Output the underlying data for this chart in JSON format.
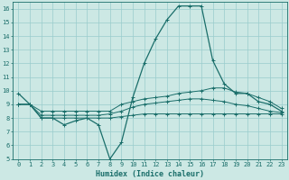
{
  "xlabel": "Humidex (Indice chaleur)",
  "background_color": "#cce8e4",
  "grid_color": "#99cccc",
  "line_color": "#1a6e6a",
  "xlim": [
    -0.5,
    23.5
  ],
  "ylim": [
    5,
    16.5
  ],
  "xticks": [
    0,
    1,
    2,
    3,
    4,
    5,
    6,
    7,
    8,
    9,
    10,
    11,
    12,
    13,
    14,
    15,
    16,
    17,
    18,
    19,
    20,
    21,
    22,
    23
  ],
  "yticks": [
    5,
    6,
    7,
    8,
    9,
    10,
    11,
    12,
    13,
    14,
    15,
    16
  ],
  "lines": [
    {
      "x": [
        0,
        1,
        2,
        3,
        4,
        5,
        6,
        7,
        8,
        9,
        10,
        11,
        12,
        13,
        14,
        15,
        16,
        17,
        18,
        19,
        20,
        21,
        22,
        23
      ],
      "y": [
        9.8,
        9.0,
        8.0,
        8.0,
        7.5,
        7.8,
        8.0,
        7.5,
        5.0,
        6.2,
        9.5,
        12.0,
        13.8,
        15.2,
        16.2,
        16.2,
        16.2,
        12.2,
        10.5,
        9.8,
        9.8,
        9.2,
        9.0,
        8.5
      ]
    },
    {
      "x": [
        0,
        1,
        2,
        3,
        4,
        5,
        6,
        7,
        8,
        9,
        10,
        11,
        12,
        13,
        14,
        15,
        16,
        17,
        18,
        19,
        20,
        21,
        22,
        23
      ],
      "y": [
        9.0,
        9.0,
        8.5,
        8.5,
        8.5,
        8.5,
        8.5,
        8.5,
        8.5,
        9.0,
        9.2,
        9.4,
        9.5,
        9.6,
        9.8,
        9.9,
        10.0,
        10.2,
        10.2,
        9.9,
        9.8,
        9.5,
        9.2,
        8.7
      ]
    },
    {
      "x": [
        0,
        1,
        2,
        3,
        4,
        5,
        6,
        7,
        8,
        9,
        10,
        11,
        12,
        13,
        14,
        15,
        16,
        17,
        18,
        19,
        20,
        21,
        22,
        23
      ],
      "y": [
        9.0,
        9.0,
        8.2,
        8.2,
        8.2,
        8.2,
        8.2,
        8.2,
        8.3,
        8.5,
        8.8,
        9.0,
        9.1,
        9.2,
        9.3,
        9.4,
        9.4,
        9.3,
        9.2,
        9.0,
        8.9,
        8.7,
        8.5,
        8.4
      ]
    },
    {
      "x": [
        0,
        1,
        2,
        3,
        4,
        5,
        6,
        7,
        8,
        9,
        10,
        11,
        12,
        13,
        14,
        15,
        16,
        17,
        18,
        19,
        20,
        21,
        22,
        23
      ],
      "y": [
        9.0,
        9.0,
        8.0,
        8.0,
        8.0,
        8.0,
        8.0,
        8.0,
        8.0,
        8.1,
        8.2,
        8.3,
        8.3,
        8.3,
        8.3,
        8.3,
        8.3,
        8.3,
        8.3,
        8.3,
        8.3,
        8.3,
        8.3,
        8.3
      ]
    }
  ]
}
